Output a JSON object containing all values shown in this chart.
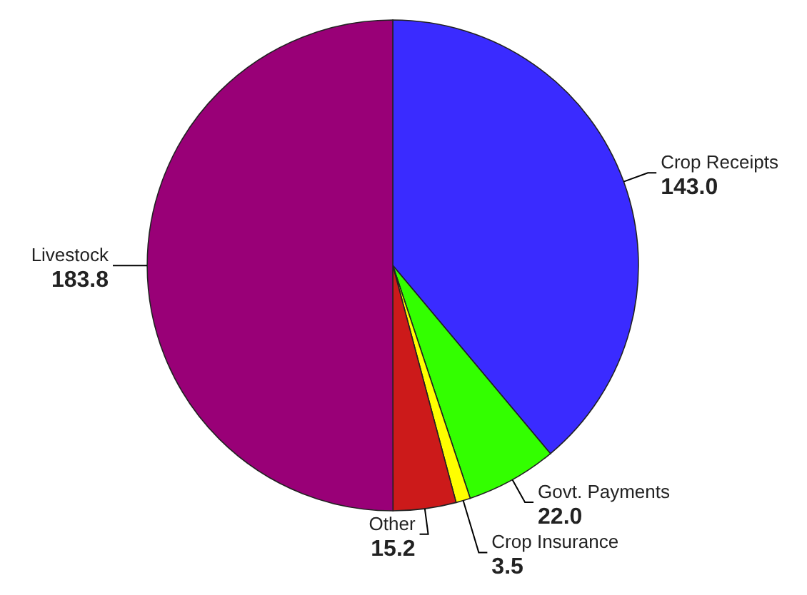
{
  "chart_data": {
    "type": "pie",
    "categories": [
      "Crop Receipts",
      "Govt. Payments",
      "Crop Insurance",
      "Other",
      "Livestock"
    ],
    "values": [
      143.0,
      22.0,
      3.5,
      15.2,
      183.8
    ],
    "value_labels": [
      "143.0",
      "22.0",
      "3.5",
      "15.2",
      "183.8"
    ],
    "colors": [
      "#3a2bff",
      "#33ff00",
      "#ffff00",
      "#cc1a1a",
      "#990077"
    ]
  }
}
